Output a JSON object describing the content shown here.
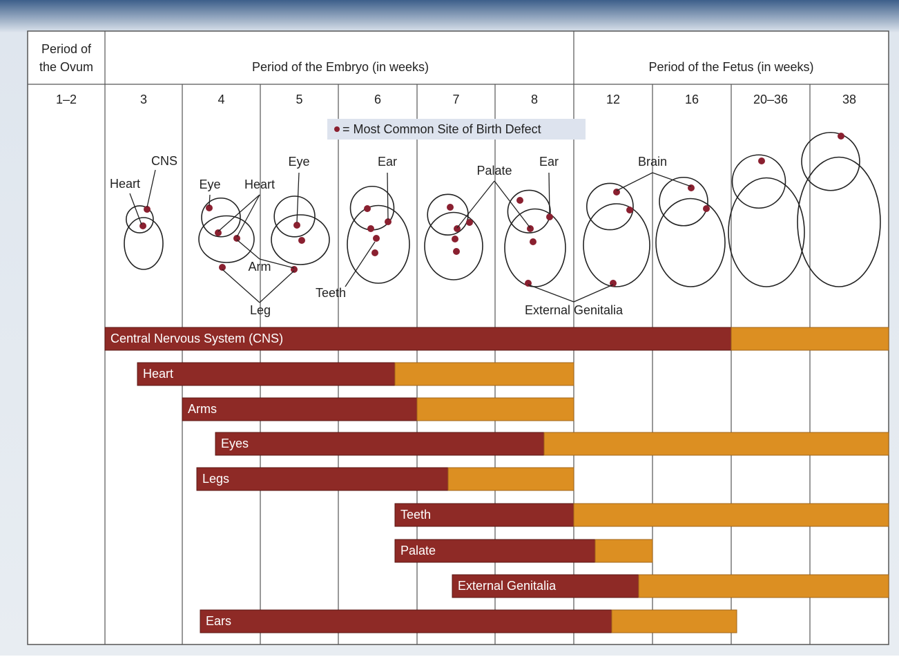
{
  "header": {
    "ovum": [
      "Period of",
      "the Ovum"
    ],
    "embryo": "Period of the Embryo (in weeks)",
    "fetus": "Period of the Fetus (in weeks)"
  },
  "weeks": [
    "1–2",
    "3",
    "4",
    "5",
    "6",
    "7",
    "8",
    "12",
    "16",
    "20–36",
    "38"
  ],
  "legend": "= Most Common Site of Birth Defect",
  "site_labels": [
    "CNS",
    "Heart",
    "Eye",
    "Heart",
    "Eye",
    "Arm",
    "Leg",
    "Ear",
    "Teeth",
    "Palate",
    "Ear",
    "Brain",
    "External Genitalia"
  ],
  "bars": [
    "Central Nervous System (CNS)",
    "Heart",
    "Arms",
    "Eyes",
    "Legs",
    "Teeth",
    "Palate",
    "External Genitalia",
    "Ears"
  ]
}
